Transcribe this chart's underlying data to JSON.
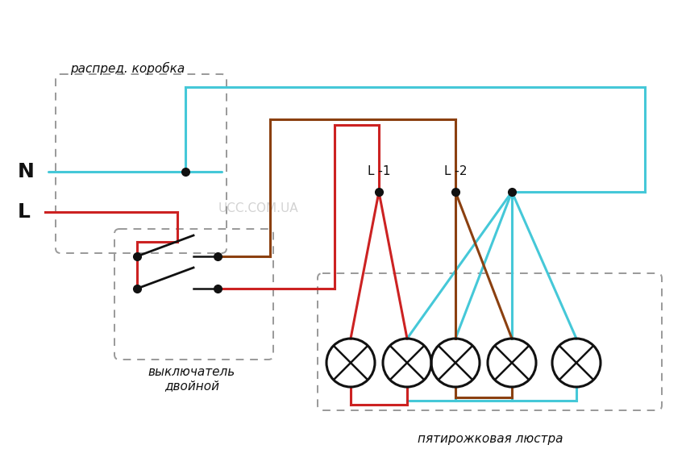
{
  "bg_color": "#ffffff",
  "cyan": "#45c8d8",
  "red": "#cc2222",
  "brown": "#8B4010",
  "black": "#111111",
  "gray_dash": "#999999",
  "label_N": "N",
  "label_L": "L",
  "label_L1": "L -1",
  "label_L2": "L -2",
  "label_raspred": "распред. коробка",
  "label_switch1": "выключатель",
  "label_switch2": "двойной",
  "label_lustra": "пятирожковая люстра",
  "label_ucc": "UCC.COM.UA",
  "figsize": [
    8.51,
    5.88
  ],
  "dpi": 100,
  "lw_wire": 2.2,
  "lw_dash": 1.4,
  "dot_size": 7
}
